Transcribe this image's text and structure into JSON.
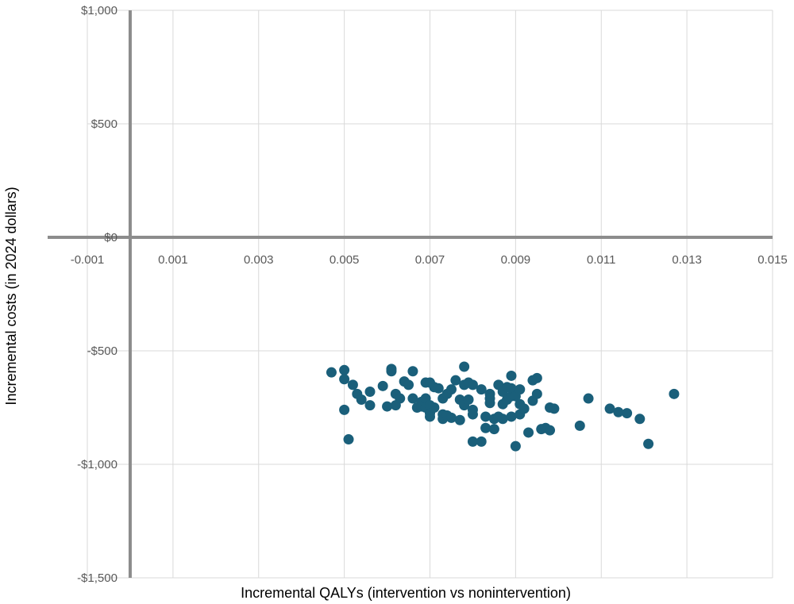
{
  "chart_data": {
    "type": "scatter",
    "xlabel": "Incremental QALYs  (intervention vs nonintervention)",
    "ylabel": "Incremental costs (in 2024  dollars)",
    "xlim": [
      -0.001,
      0.015
    ],
    "ylim": [
      -1500,
      1000
    ],
    "x_ticks": [
      -0.001,
      0.001,
      0.003,
      0.005,
      0.007,
      0.009,
      0.011,
      0.013,
      0.015
    ],
    "x_tick_labels": [
      "-0.001",
      "0.001",
      "0.003",
      "0.005",
      "0.007",
      "0.009",
      "0.011",
      "0.013",
      "0.015"
    ],
    "y_ticks": [
      1000,
      500,
      0,
      -500,
      -1000,
      -1500
    ],
    "y_tick_labels": [
      "$1,000",
      "$500",
      "$0",
      "-$500",
      "-$1,000",
      "-$1,500"
    ],
    "grid": true,
    "legend": "none",
    "colors": {
      "points": "#1a5f7a",
      "grid": "#d9d9d9",
      "axis": "#8c8c8c"
    },
    "points": [
      [
        0.0047,
        -595
      ],
      [
        0.005,
        -585
      ],
      [
        0.005,
        -625
      ],
      [
        0.0052,
        -650
      ],
      [
        0.0053,
        -690
      ],
      [
        0.0054,
        -715
      ],
      [
        0.005,
        -760
      ],
      [
        0.0051,
        -890
      ],
      [
        0.0056,
        -680
      ],
      [
        0.0056,
        -740
      ],
      [
        0.0059,
        -655
      ],
      [
        0.006,
        -745
      ],
      [
        0.0061,
        -580
      ],
      [
        0.0061,
        -590
      ],
      [
        0.0062,
        -690
      ],
      [
        0.0062,
        -740
      ],
      [
        0.0063,
        -710
      ],
      [
        0.0064,
        -635
      ],
      [
        0.0065,
        -650
      ],
      [
        0.0066,
        -590
      ],
      [
        0.0066,
        -710
      ],
      [
        0.0067,
        -750
      ],
      [
        0.0068,
        -725
      ],
      [
        0.0068,
        -745
      ],
      [
        0.0069,
        -640
      ],
      [
        0.0069,
        -710
      ],
      [
        0.0069,
        -750
      ],
      [
        0.007,
        -775
      ],
      [
        0.007,
        -790
      ],
      [
        0.007,
        -740
      ],
      [
        0.007,
        -640
      ],
      [
        0.0071,
        -660
      ],
      [
        0.0071,
        -750
      ],
      [
        0.0072,
        -665
      ],
      [
        0.0073,
        -710
      ],
      [
        0.0073,
        -780
      ],
      [
        0.0073,
        -800
      ],
      [
        0.0074,
        -690
      ],
      [
        0.0074,
        -785
      ],
      [
        0.0075,
        -670
      ],
      [
        0.0075,
        -795
      ],
      [
        0.0076,
        -630
      ],
      [
        0.0077,
        -715
      ],
      [
        0.0077,
        -805
      ],
      [
        0.0078,
        -570
      ],
      [
        0.0078,
        -650
      ],
      [
        0.0078,
        -740
      ],
      [
        0.0079,
        -640
      ],
      [
        0.0079,
        -715
      ],
      [
        0.008,
        -650
      ],
      [
        0.008,
        -760
      ],
      [
        0.008,
        -780
      ],
      [
        0.008,
        -900
      ],
      [
        0.0082,
        -670
      ],
      [
        0.0082,
        -900
      ],
      [
        0.0083,
        -790
      ],
      [
        0.0083,
        -840
      ],
      [
        0.0084,
        -690
      ],
      [
        0.0084,
        -710
      ],
      [
        0.0084,
        -730
      ],
      [
        0.0085,
        -800
      ],
      [
        0.0085,
        -845
      ],
      [
        0.0086,
        -650
      ],
      [
        0.0086,
        -790
      ],
      [
        0.0087,
        -680
      ],
      [
        0.0087,
        -735
      ],
      [
        0.0087,
        -800
      ],
      [
        0.0088,
        -660
      ],
      [
        0.0088,
        -715
      ],
      [
        0.0089,
        -700
      ],
      [
        0.0089,
        -610
      ],
      [
        0.0089,
        -665
      ],
      [
        0.0089,
        -790
      ],
      [
        0.009,
        -700
      ],
      [
        0.009,
        -920
      ],
      [
        0.0091,
        -670
      ],
      [
        0.0091,
        -735
      ],
      [
        0.0091,
        -780
      ],
      [
        0.0092,
        -755
      ],
      [
        0.0093,
        -860
      ],
      [
        0.0094,
        -720
      ],
      [
        0.0094,
        -630
      ],
      [
        0.0095,
        -620
      ],
      [
        0.0095,
        -690
      ],
      [
        0.0096,
        -845
      ],
      [
        0.0097,
        -840
      ],
      [
        0.0098,
        -750
      ],
      [
        0.0098,
        -850
      ],
      [
        0.0099,
        -755
      ],
      [
        0.0105,
        -830
      ],
      [
        0.0107,
        -710
      ],
      [
        0.0112,
        -755
      ],
      [
        0.0114,
        -770
      ],
      [
        0.0116,
        -775
      ],
      [
        0.0119,
        -800
      ],
      [
        0.0121,
        -910
      ],
      [
        0.0127,
        -690
      ]
    ]
  }
}
